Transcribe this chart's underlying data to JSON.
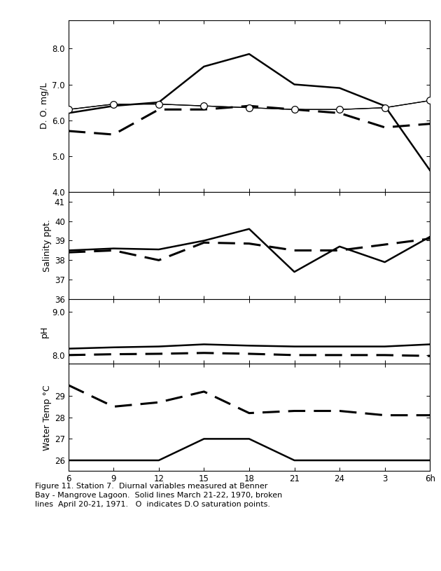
{
  "x_values": [
    6,
    9,
    12,
    15,
    18,
    21,
    24,
    27,
    30
  ],
  "x_tick_labels": [
    "6",
    "9",
    "12",
    "15",
    "18",
    "21",
    "24",
    "3",
    "6h"
  ],
  "do_solid": [
    6.2,
    6.4,
    6.5,
    7.5,
    7.85,
    7.0,
    6.9,
    6.4,
    4.6
  ],
  "do_dashed": [
    5.7,
    5.6,
    6.3,
    6.3,
    6.4,
    6.3,
    6.2,
    5.8,
    5.9
  ],
  "do_thin_solid": [
    6.3,
    6.45,
    6.45,
    6.4,
    6.35,
    6.3,
    6.3,
    6.35,
    6.55
  ],
  "do_sat_x": [
    6,
    9,
    12,
    15,
    18,
    21,
    24,
    27,
    30
  ],
  "do_sat_y": [
    6.3,
    6.45,
    6.45,
    6.4,
    6.35,
    6.3,
    6.3,
    6.35,
    6.55
  ],
  "do_ylim": [
    4.0,
    8.8
  ],
  "do_yticks": [
    4.0,
    5.0,
    6.0,
    7.0,
    8.0
  ],
  "do_ytick_labels": [
    "4.0",
    "5.0",
    "6.0",
    "7.0",
    "8.0"
  ],
  "do_ylabel": "D. O. mg/L",
  "sal_solid": [
    38.5,
    38.6,
    38.55,
    39.0,
    39.6,
    37.4,
    38.7,
    37.9,
    39.2
  ],
  "sal_dashed": [
    38.4,
    38.5,
    38.0,
    38.9,
    38.85,
    38.5,
    38.5,
    38.8,
    39.1
  ],
  "sal_ylim": [
    36.0,
    41.5
  ],
  "sal_yticks": [
    36,
    37,
    38,
    39,
    40,
    41
  ],
  "sal_ytick_labels": [
    "36",
    "37",
    "38",
    "39",
    "40",
    "41"
  ],
  "sal_ylabel": "Salinity ppt.",
  "ph_solid": [
    8.15,
    8.18,
    8.2,
    8.25,
    8.22,
    8.2,
    8.2,
    8.2,
    8.25
  ],
  "ph_dashed": [
    8.0,
    8.02,
    8.03,
    8.05,
    8.03,
    8.0,
    8.0,
    8.0,
    7.98
  ],
  "ph_ylim": [
    7.8,
    9.3
  ],
  "ph_yticks": [
    8.0,
    9.0
  ],
  "ph_ytick_labels": [
    "8.0",
    "9.0"
  ],
  "ph_ylabel": "pH",
  "temp_solid": [
    26.0,
    26.0,
    26.0,
    27.0,
    27.0,
    26.0,
    26.0,
    26.0,
    26.0
  ],
  "temp_dashed": [
    29.5,
    28.5,
    28.7,
    29.2,
    28.2,
    28.3,
    28.3,
    28.1,
    28.1
  ],
  "temp_ylim": [
    25.5,
    30.5
  ],
  "temp_yticks": [
    26,
    27,
    28,
    29
  ],
  "temp_ytick_labels": [
    "26",
    "27",
    "28",
    "29"
  ],
  "temp_ylabel": "Water Temp °C",
  "caption": "Figure 11. Station 7.  Diurnal variables measured at Benner\nBay - Mangrove Lagoon.  Solid lines March 21-22, 1970, broken\nlines  April 20-21, 1971.   O  indicates D.O saturation points.",
  "bg_color": "#ffffff",
  "lw_solid": 1.8,
  "lw_dashed": 2.2,
  "lw_thin": 0.9,
  "lw_marker": 0.9
}
